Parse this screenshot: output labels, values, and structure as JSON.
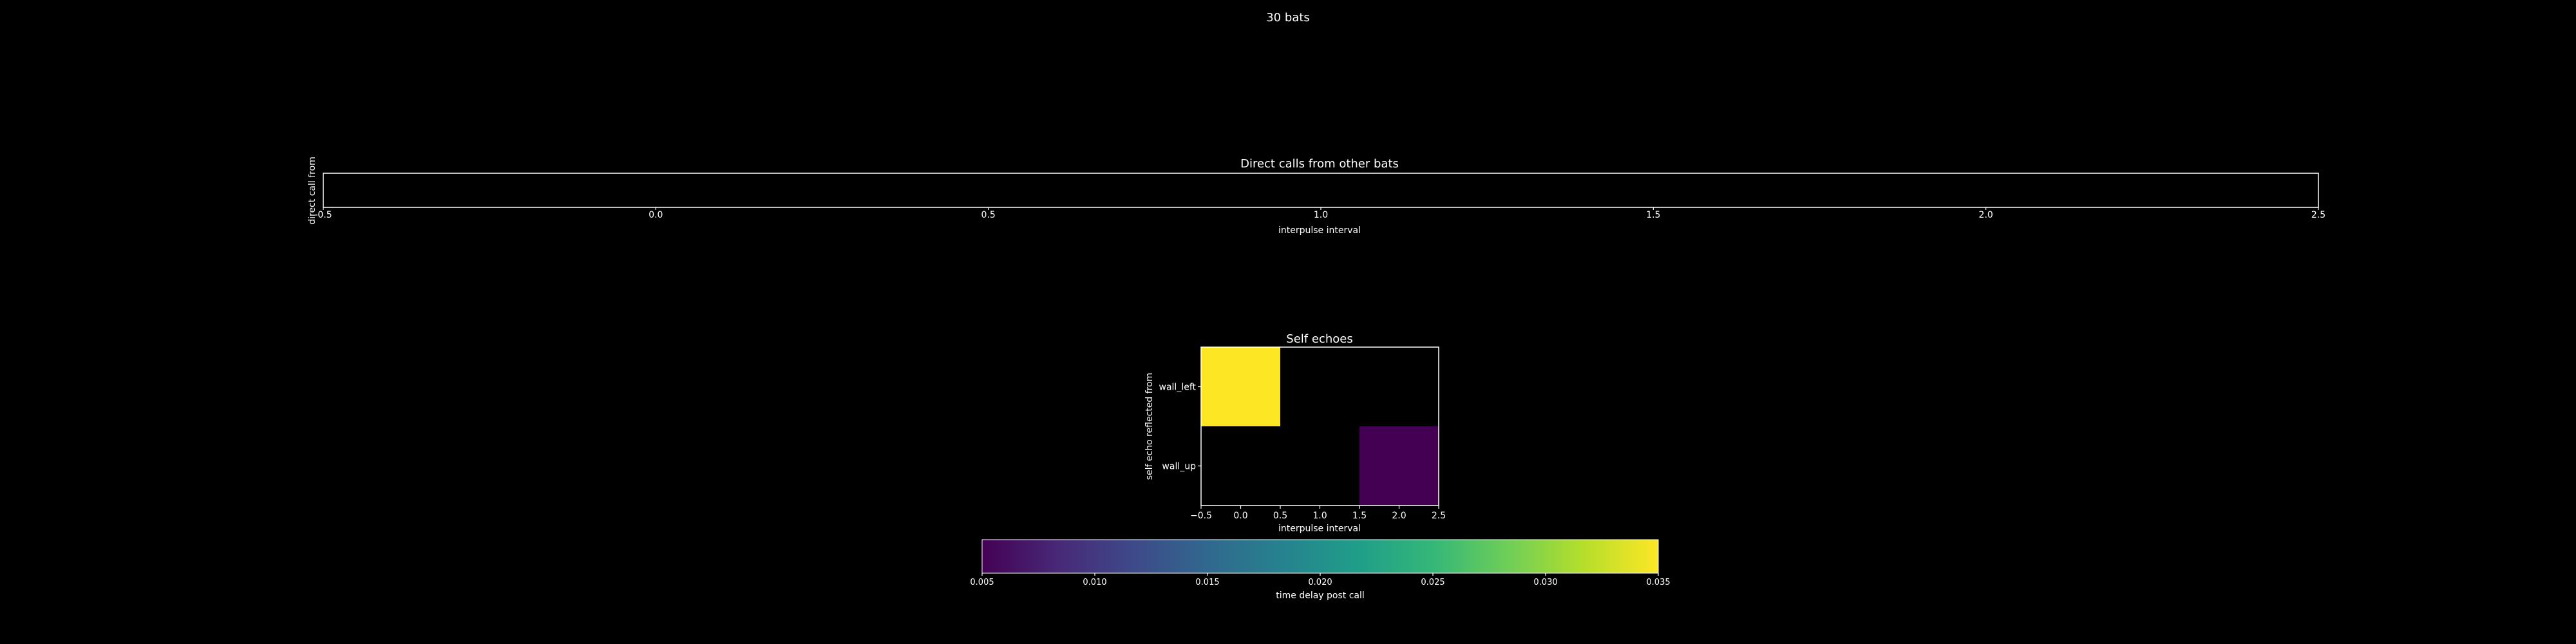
{
  "figure": {
    "title": "30 bats"
  },
  "chart_data": [
    {
      "type": "heatmap",
      "title": "Direct calls from other bats",
      "xlabel": "interpulse interval",
      "ylabel": "direct call from",
      "xlim": [
        -0.5,
        2.5
      ],
      "x_ticks": [
        "-0.5",
        "0.0",
        "0.5",
        "1.0",
        "1.5",
        "2.0",
        "2.5"
      ],
      "y_categories": [],
      "cells": []
    },
    {
      "type": "heatmap",
      "title": "Self echoes",
      "xlabel": "interpulse interval",
      "ylabel": "self echo reflected from",
      "xlim": [
        -0.5,
        2.5
      ],
      "x_ticks": [
        "−0.5",
        "0.0",
        "0.5",
        "1.0",
        "1.5",
        "2.0",
        "2.5"
      ],
      "y_categories": [
        "wall_left",
        "wall_up"
      ],
      "cells": [
        {
          "x": 0,
          "y": "wall_left",
          "value": 0.035
        },
        {
          "x": 2,
          "y": "wall_up",
          "value": 0.005
        }
      ]
    },
    {
      "type": "colorbar",
      "label": "time delay post call",
      "range": [
        0.005,
        0.035
      ],
      "ticks": [
        "0.005",
        "0.010",
        "0.015",
        "0.020",
        "0.025",
        "0.030",
        "0.035"
      ],
      "colormap": "viridis"
    }
  ],
  "colors": {
    "background": "#000000",
    "axes": "#ffffff",
    "viridis": [
      "#440154",
      "#482878",
      "#3e4989",
      "#31688e",
      "#26828e",
      "#1f9e89",
      "#35b779",
      "#6ece58",
      "#b5de2b",
      "#fde725"
    ]
  }
}
